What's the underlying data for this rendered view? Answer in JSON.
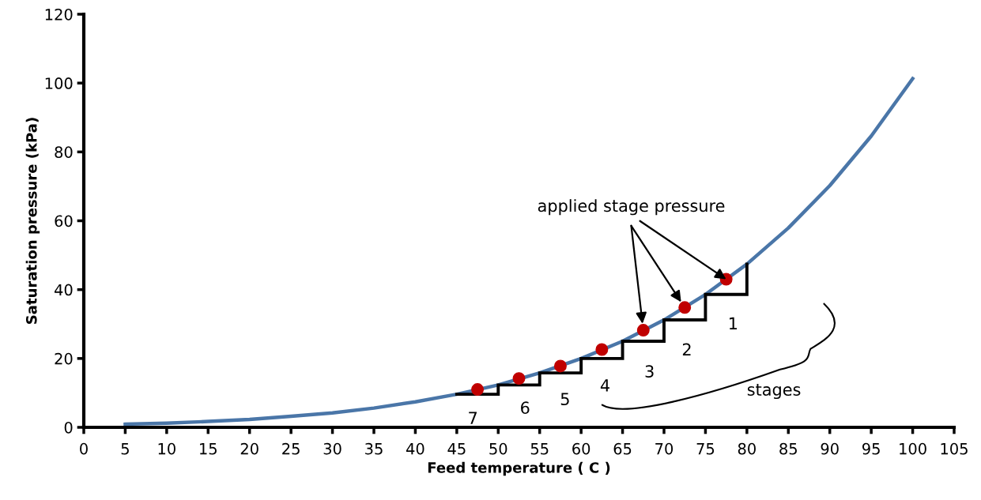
{
  "chart_data": {
    "type": "line",
    "xlabel": "Feed temperature ( C )",
    "ylabel": "Saturation pressure (kPa)",
    "xlim": [
      0,
      105
    ],
    "xticks": [
      0,
      5,
      10,
      15,
      20,
      25,
      30,
      35,
      40,
      45,
      50,
      55,
      60,
      65,
      70,
      75,
      80,
      85,
      90,
      95,
      100,
      105
    ],
    "ylim": [
      0,
      120
    ],
    "yticks": [
      0,
      20,
      40,
      60,
      80,
      100,
      120
    ],
    "grid": false,
    "legend": false,
    "series": [
      {
        "color": "#4a76a8",
        "x": [
          5,
          10,
          15,
          20,
          25,
          30,
          35,
          40,
          45,
          50,
          55,
          60,
          65,
          70,
          75,
          80,
          85,
          90,
          95,
          100
        ],
        "values": [
          0.9,
          1.2,
          1.7,
          2.3,
          3.2,
          4.2,
          5.6,
          7.4,
          9.6,
          12.3,
          15.8,
          20.0,
          25.0,
          31.2,
          38.6,
          47.4,
          57.9,
          70.2,
          84.6,
          101.3
        ]
      },
      {
        "color": "#000000",
        "x": [
          45,
          50,
          50,
          55,
          55,
          60,
          60,
          65,
          65,
          70,
          70,
          75,
          75,
          80,
          80
        ],
        "values": [
          9.6,
          9.6,
          12.3,
          12.3,
          15.8,
          15.8,
          20.0,
          20.0,
          25.0,
          25.0,
          31.2,
          31.2,
          38.6,
          38.6,
          47.4
        ]
      },
      {
        "type": "scatter",
        "color": "#c00000",
        "marker": "circle",
        "x": [
          47.5,
          52.5,
          57.5,
          62.5,
          67.5,
          72.5,
          77.5
        ],
        "values": [
          11.0,
          14.2,
          17.8,
          22.6,
          28.2,
          34.8,
          43.0
        ]
      }
    ],
    "annotations": [
      {
        "text": "applied stage pressure",
        "x": 77.5,
        "y": 43.0
      },
      "1",
      "2",
      "3",
      "4",
      "5",
      "6",
      "7",
      "stages"
    ]
  }
}
